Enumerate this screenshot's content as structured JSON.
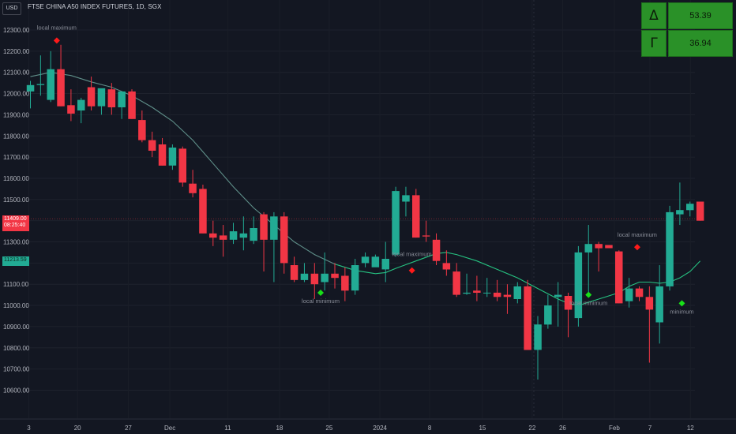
{
  "header": {
    "currency": "USD",
    "symbol_title": "FTSE CHINA A50 INDEX FUTURES, 1D, SGX"
  },
  "greeks_table": [
    {
      "symbol": "Δ",
      "value": "53.39"
    },
    {
      "symbol": "Γ",
      "value": "36.94"
    }
  ],
  "price_tags": {
    "last_price": "11409.00",
    "countdown": "08:25:40",
    "ma_value": "11213.59"
  },
  "annotations": {
    "local_maximum": "local maximum",
    "local_minimum": "local minimum",
    "partial_max_1": "local maxim",
    "partial_min_1": "local minimum",
    "partial_min_2": "minimum"
  },
  "colors": {
    "background": "#131722",
    "up": "#22ab94",
    "down": "#f23645",
    "ma_line_upper": "#5f8f89",
    "ma_line_lower": "#26c281",
    "max_marker": "#ff1a1a",
    "min_marker": "#18e018",
    "table_fill": "#2a9128"
  },
  "chart_data": {
    "type": "candlestick",
    "ylim": [
      10550,
      12380
    ],
    "y_ticks": [
      "12300.00",
      "12200.00",
      "12100.00",
      "12000.00",
      "11900.00",
      "11800.00",
      "11700.00",
      "11600.00",
      "11500.00",
      "11400.00",
      "11300.00",
      "11200.00",
      "11100.00",
      "11000.00",
      "10900.00",
      "10800.00",
      "10700.00",
      "10600.00"
    ],
    "x_ticks": [
      "3",
      "20",
      "27",
      "Dec",
      "11",
      "18",
      "25",
      "2024",
      "8",
      "15",
      "22",
      "26",
      "Feb",
      "7",
      "12"
    ],
    "candles": [
      {
        "o": 12010,
        "h": 12060,
        "l": 11930,
        "c": 12040
      },
      {
        "o": 12040,
        "h": 12180,
        "l": 11990,
        "c": 12045
      },
      {
        "o": 11970,
        "h": 12200,
        "l": 11960,
        "c": 12115
      },
      {
        "o": 12115,
        "h": 12230,
        "l": 11940,
        "c": 11940
      },
      {
        "o": 11945,
        "h": 12020,
        "l": 11870,
        "c": 11905
      },
      {
        "o": 11920,
        "h": 11980,
        "l": 11860,
        "c": 11970
      },
      {
        "o": 12030,
        "h": 12080,
        "l": 11920,
        "c": 11940
      },
      {
        "o": 11940,
        "h": 12020,
        "l": 11900,
        "c": 12025
      },
      {
        "o": 12020,
        "h": 12050,
        "l": 11900,
        "c": 11935
      },
      {
        "o": 11935,
        "h": 12000,
        "l": 11880,
        "c": 12010
      },
      {
        "o": 12010,
        "h": 12020,
        "l": 11880,
        "c": 11880
      },
      {
        "o": 11875,
        "h": 11920,
        "l": 11770,
        "c": 11780
      },
      {
        "o": 11780,
        "h": 11820,
        "l": 11700,
        "c": 11730
      },
      {
        "o": 11760,
        "h": 11790,
        "l": 11660,
        "c": 11660
      },
      {
        "o": 11660,
        "h": 11760,
        "l": 11640,
        "c": 11745
      },
      {
        "o": 11740,
        "h": 11750,
        "l": 11560,
        "c": 11580
      },
      {
        "o": 11575,
        "h": 11640,
        "l": 11510,
        "c": 11530
      },
      {
        "o": 11550,
        "h": 11570,
        "l": 11340,
        "c": 11340
      },
      {
        "o": 11340,
        "h": 11400,
        "l": 11280,
        "c": 11320
      },
      {
        "o": 11330,
        "h": 11380,
        "l": 11230,
        "c": 11310
      },
      {
        "o": 11310,
        "h": 11390,
        "l": 11290,
        "c": 11350
      },
      {
        "o": 11320,
        "h": 11420,
        "l": 11260,
        "c": 11340
      },
      {
        "o": 11305,
        "h": 11420,
        "l": 11290,
        "c": 11365
      },
      {
        "o": 11430,
        "h": 11440,
        "l": 11160,
        "c": 11310
      },
      {
        "o": 11310,
        "h": 11440,
        "l": 11110,
        "c": 11420
      },
      {
        "o": 11420,
        "h": 11440,
        "l": 11150,
        "c": 11200
      },
      {
        "o": 11190,
        "h": 11230,
        "l": 11110,
        "c": 11120
      },
      {
        "o": 11120,
        "h": 11200,
        "l": 11110,
        "c": 11150
      },
      {
        "o": 11150,
        "h": 11200,
        "l": 11030,
        "c": 11100
      },
      {
        "o": 11110,
        "h": 11250,
        "l": 11070,
        "c": 11150
      },
      {
        "o": 11150,
        "h": 11200,
        "l": 11080,
        "c": 11130
      },
      {
        "o": 11140,
        "h": 11180,
        "l": 11020,
        "c": 11070
      },
      {
        "o": 11070,
        "h": 11220,
        "l": 11050,
        "c": 11190
      },
      {
        "o": 11200,
        "h": 11250,
        "l": 11180,
        "c": 11230
      },
      {
        "o": 11180,
        "h": 11240,
        "l": 11190,
        "c": 11230
      },
      {
        "o": 11170,
        "h": 11300,
        "l": 11110,
        "c": 11220
      },
      {
        "o": 11240,
        "h": 11560,
        "l": 11230,
        "c": 11540
      },
      {
        "o": 11490,
        "h": 11560,
        "l": 11420,
        "c": 11520
      },
      {
        "o": 11520,
        "h": 11550,
        "l": 11320,
        "c": 11320
      },
      {
        "o": 11330,
        "h": 11400,
        "l": 11300,
        "c": 11325
      },
      {
        "o": 11310,
        "h": 11340,
        "l": 11190,
        "c": 11210
      },
      {
        "o": 11200,
        "h": 11260,
        "l": 11140,
        "c": 11170
      },
      {
        "o": 11160,
        "h": 11200,
        "l": 11040,
        "c": 11050
      },
      {
        "o": 11055,
        "h": 11150,
        "l": 11050,
        "c": 11060
      },
      {
        "o": 11070,
        "h": 11140,
        "l": 11020,
        "c": 11060
      },
      {
        "o": 11060,
        "h": 11130,
        "l": 11040,
        "c": 11060
      },
      {
        "o": 11060,
        "h": 11120,
        "l": 11020,
        "c": 11040
      },
      {
        "o": 11050,
        "h": 11100,
        "l": 10960,
        "c": 11040
      },
      {
        "o": 11030,
        "h": 11110,
        "l": 11010,
        "c": 11090
      },
      {
        "o": 11090,
        "h": 11120,
        "l": 10790,
        "c": 10790
      },
      {
        "o": 10790,
        "h": 10950,
        "l": 10650,
        "c": 10910
      },
      {
        "o": 10910,
        "h": 11050,
        "l": 10890,
        "c": 11000
      },
      {
        "o": 11040,
        "h": 11110,
        "l": 10900,
        "c": 11050
      },
      {
        "o": 11045,
        "h": 11060,
        "l": 10850,
        "c": 10980
      },
      {
        "o": 10940,
        "h": 11280,
        "l": 10900,
        "c": 11250
      },
      {
        "o": 11250,
        "h": 11380,
        "l": 11060,
        "c": 11290
      },
      {
        "o": 11290,
        "h": 11300,
        "l": 11160,
        "c": 11270
      },
      {
        "o": 11285,
        "h": 11285,
        "l": 11285,
        "c": 11270
      },
      {
        "o": 11255,
        "h": 11260,
        "l": 11010,
        "c": 11010
      },
      {
        "o": 11020,
        "h": 11130,
        "l": 10990,
        "c": 11080
      },
      {
        "o": 11080,
        "h": 11090,
        "l": 11020,
        "c": 11040
      },
      {
        "o": 11040,
        "h": 11090,
        "l": 10730,
        "c": 10980
      },
      {
        "o": 10920,
        "h": 11190,
        "l": 10820,
        "c": 11090
      },
      {
        "o": 11090,
        "h": 11470,
        "l": 11070,
        "c": 11440
      },
      {
        "o": 11430,
        "h": 11580,
        "l": 11380,
        "c": 11450
      },
      {
        "o": 11450,
        "h": 11490,
        "l": 11420,
        "c": 11480
      },
      {
        "o": 11490,
        "h": 11490,
        "l": 11400,
        "c": 11400
      }
    ],
    "moving_average": [
      {
        "i": 0,
        "v": 12080
      },
      {
        "i": 2,
        "v": 12100
      },
      {
        "i": 4,
        "v": 12085
      },
      {
        "i": 6,
        "v": 12055
      },
      {
        "i": 8,
        "v": 12030
      },
      {
        "i": 10,
        "v": 11990
      },
      {
        "i": 12,
        "v": 11935
      },
      {
        "i": 14,
        "v": 11870
      },
      {
        "i": 16,
        "v": 11780
      },
      {
        "i": 18,
        "v": 11670
      },
      {
        "i": 20,
        "v": 11560
      },
      {
        "i": 22,
        "v": 11460
      },
      {
        "i": 24,
        "v": 11380
      },
      {
        "i": 26,
        "v": 11300
      },
      {
        "i": 28,
        "v": 11240
      },
      {
        "i": 30,
        "v": 11195
      },
      {
        "i": 32,
        "v": 11165
      },
      {
        "i": 34,
        "v": 11150
      },
      {
        "i": 35,
        "v": 11155
      },
      {
        "i": 36,
        "v": 11175
      },
      {
        "i": 38,
        "v": 11210
      },
      {
        "i": 40,
        "v": 11245
      },
      {
        "i": 41,
        "v": 11250
      },
      {
        "i": 42,
        "v": 11240
      },
      {
        "i": 44,
        "v": 11210
      },
      {
        "i": 46,
        "v": 11170
      },
      {
        "i": 48,
        "v": 11130
      },
      {
        "i": 50,
        "v": 11080
      },
      {
        "i": 52,
        "v": 11030
      },
      {
        "i": 53,
        "v": 11010
      },
      {
        "i": 54,
        "v": 11000
      },
      {
        "i": 56,
        "v": 11030
      },
      {
        "i": 58,
        "v": 11060
      },
      {
        "i": 59,
        "v": 11090
      },
      {
        "i": 60,
        "v": 11110
      },
      {
        "i": 61,
        "v": 11110
      },
      {
        "i": 62,
        "v": 11105
      },
      {
        "i": 63,
        "v": 11110
      },
      {
        "i": 64,
        "v": 11130
      },
      {
        "i": 65,
        "v": 11160
      },
      {
        "i": 66,
        "v": 11210
      }
    ],
    "markers": [
      {
        "type": "max",
        "i": 2.6,
        "v": 12250,
        "label": "local maximum",
        "label_dy": -14
      },
      {
        "type": "min",
        "i": 28.6,
        "v": 11060,
        "label": "local minimum",
        "label_dy": 13
      },
      {
        "type": "max",
        "i": 37.6,
        "v": 11165,
        "label": "local maximum",
        "label_dy": -18,
        "label_dx": 0
      },
      {
        "type": "min",
        "i": 55.0,
        "v": 11050,
        "label": "local minimum",
        "label_dy": 13
      },
      {
        "type": "max",
        "i": 59.8,
        "v": 11275,
        "label": "local maximum",
        "label_dy": -13
      },
      {
        "type": "min",
        "i": 64.2,
        "v": 11010,
        "label": "minimum",
        "label_dy": 13
      }
    ]
  }
}
